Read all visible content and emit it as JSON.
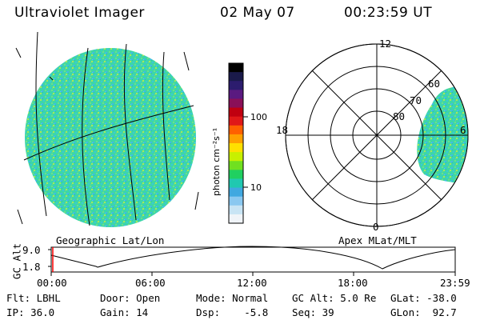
{
  "header": {
    "instrument": "Ultraviolet Imager",
    "date": "02 May 07",
    "time": "00:23:59 UT"
  },
  "colorbar": {
    "unit_label": "photon cm⁻²s⁻¹",
    "ticks": [
      "100",
      "10"
    ],
    "colors": [
      "#000000",
      "#1a1a4a",
      "#2c1c6e",
      "#5a1a80",
      "#8a1058",
      "#c00010",
      "#e01818",
      "#ff6000",
      "#ffa000",
      "#ffe000",
      "#c8f000",
      "#70e020",
      "#20d060",
      "#20c8b0",
      "#40a8e0",
      "#8ac8f0",
      "#c8e4f4",
      "#f0f4f8"
    ]
  },
  "polar": {
    "lat_labels": [
      "80",
      "70",
      "60"
    ],
    "mlt_labels": [
      "12",
      "18",
      "6",
      "0"
    ]
  },
  "panels": {
    "left_caption": "Geographic Lat/Lon",
    "right_caption": "Apex MLat/MLT"
  },
  "altitude_plot": {
    "ylabel": "GC Alt",
    "yticks": [
      "9.0",
      "1.8"
    ],
    "xticks": [
      "00:00",
      "06:00",
      "12:00",
      "18:00",
      "23:59"
    ],
    "marker_color": "#ff0000"
  },
  "footer": {
    "flt": "Flt: LBHL",
    "ip": "IP: 36.0",
    "door": "Door: Open",
    "gain": "Gain: 14",
    "mode": "Mode: Normal",
    "dsp": "Dsp:    -5.8",
    "gcalt": "GC Alt: 5.0 Re",
    "seq": "Seq: 39",
    "glat": "GLat: -38.0",
    "glon": "GLon:  92.7"
  }
}
